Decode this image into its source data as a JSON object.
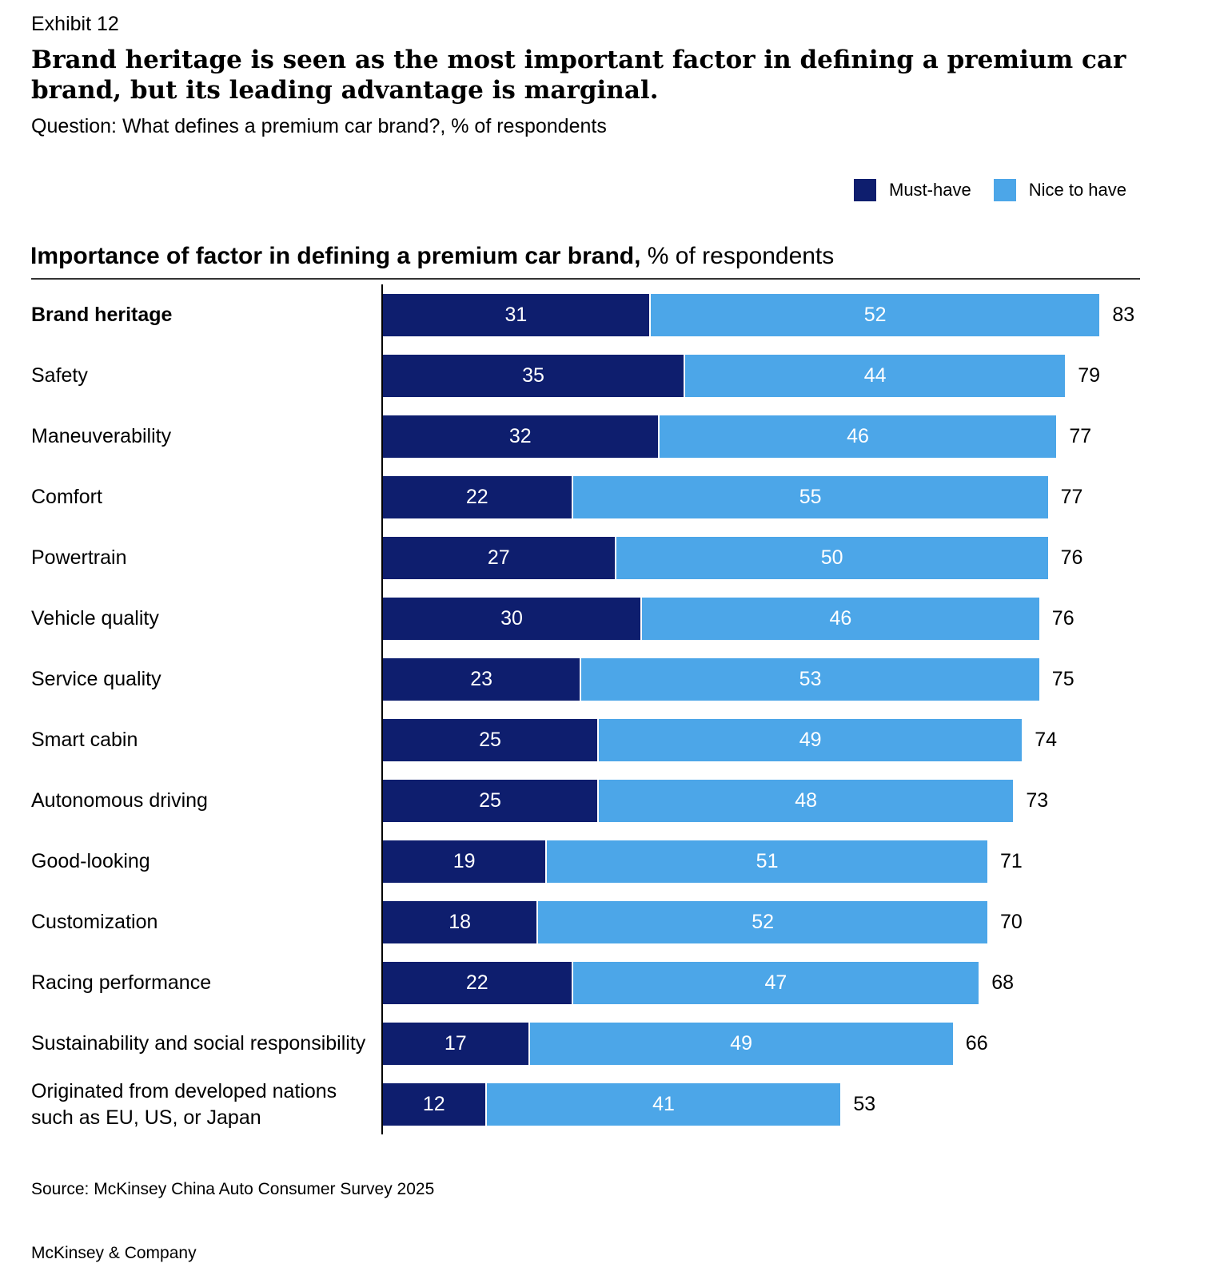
{
  "exhibit": "Exhibit 12",
  "title": "Brand heritage is seen as the most important factor in defining a premium car brand, but its leading advantage is marginal.",
  "subtitle": "Question: What defines a premium car brand?, % of respondents",
  "source": "Source: McKinsey China Auto Consumer Survey 2025",
  "brand": "McKinsey & Company",
  "chart_data": {
    "type": "bar",
    "orientation": "horizontal",
    "stacked": true,
    "title_bold": "Importance of factor in defining a premium car brand,",
    "title_rest": " % of respondents",
    "legend_position": "top-right",
    "grid": false,
    "categories": [
      "Brand heritage",
      "Safety",
      "Maneuverability",
      "Comfort",
      "Powertrain",
      "Vehicle quality",
      "Service quality",
      "Smart cabin",
      "Autonomous driving",
      "Good-looking",
      "Customization",
      "Racing performance",
      "Sustainability and social responsibility",
      "Originated from developed nations such as EU, US, or Japan"
    ],
    "series": [
      {
        "name": "Must-have",
        "color": "#0E1E6E",
        "values": [
          31,
          35,
          32,
          22,
          27,
          30,
          23,
          25,
          25,
          19,
          18,
          22,
          17,
          12
        ]
      },
      {
        "name": "Nice to have",
        "color": "#4CA6E8",
        "values": [
          52,
          44,
          46,
          55,
          50,
          46,
          53,
          49,
          48,
          51,
          52,
          47,
          49,
          41
        ]
      }
    ],
    "totals": [
      83,
      79,
      77,
      77,
      76,
      76,
      75,
      74,
      73,
      71,
      70,
      68,
      66,
      53
    ],
    "xlim": [
      0,
      83
    ]
  }
}
